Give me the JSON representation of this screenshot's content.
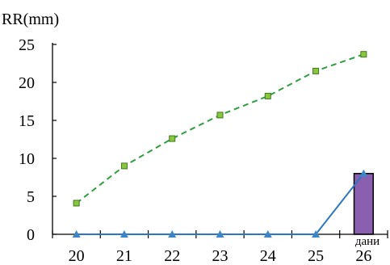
{
  "chart_data": {
    "type": "line",
    "ylabel": "RR(mm)",
    "xunit": "дани",
    "categories": [
      "20",
      "21",
      "22",
      "23",
      "24",
      "25",
      "26"
    ],
    "ylim": [
      0,
      25
    ],
    "yticks": [
      0,
      5,
      10,
      15,
      20,
      25
    ],
    "grid": false,
    "series": [
      {
        "kind": "line",
        "values": [
          4.1,
          9.0,
          12.6,
          15.7,
          18.2,
          21.5,
          23.7
        ],
        "color": "#2e9e3e",
        "marker_color": "#8cc63f",
        "style": "dashed",
        "marker": "square"
      },
      {
        "kind": "line",
        "values": [
          0,
          0,
          0,
          0,
          0,
          0,
          8.0
        ],
        "color": "#2b78c0",
        "marker_color": "#3d85c6",
        "style": "solid",
        "marker": "triangle"
      },
      {
        "kind": "bar",
        "values": [
          0,
          0,
          0,
          0,
          0,
          0,
          8.0
        ],
        "color": "#8a5fb0"
      }
    ]
  }
}
